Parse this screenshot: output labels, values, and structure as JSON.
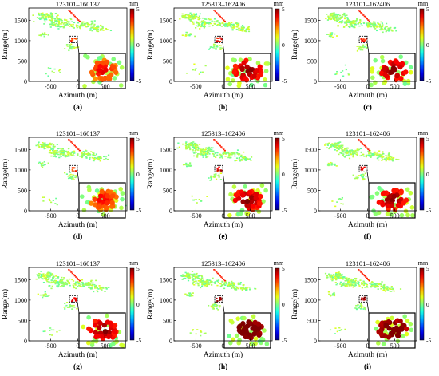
{
  "figure": {
    "panel_labels": [
      "(a)",
      "(b)",
      "(c)",
      "(d)",
      "(e)",
      "(f)",
      "(g)",
      "(h)",
      "(i)"
    ]
  },
  "chart_data": [
    {
      "type": "scatter",
      "title": "123101–160137",
      "xlabel": "Azimuth (m)",
      "ylabel": "Range(m)",
      "xlim": [
        -900,
        900
      ],
      "ylim": [
        0,
        1800
      ],
      "xticks": [
        -500,
        0,
        500
      ],
      "yticks": [
        0,
        500,
        1000,
        1500
      ],
      "colorbar": {
        "unit": "mm",
        "range": [
          -5,
          5
        ],
        "ticks": [
          5,
          0,
          -5
        ]
      },
      "inset": {
        "zoom_center": [
          -80,
          1030
        ],
        "dominant_color": "orange"
      }
    },
    {
      "type": "scatter",
      "title": "125313–162406",
      "xlabel": "Azimuth (m)",
      "ylabel": "Range(m)",
      "xlim": [
        -900,
        900
      ],
      "ylim": [
        0,
        1800
      ],
      "xticks": [
        -500,
        0,
        500
      ],
      "yticks": [
        0,
        500,
        1000,
        1500
      ],
      "colorbar": {
        "unit": "mm",
        "range": [
          -5,
          5
        ],
        "ticks": [
          5,
          0,
          -5
        ]
      },
      "inset": {
        "zoom_center": [
          -80,
          1030
        ],
        "dominant_color": "red"
      }
    },
    {
      "type": "scatter",
      "title": "123101–162406",
      "xlabel": "Azimuth (m)",
      "ylabel": "Range(m)",
      "xlim": [
        -900,
        900
      ],
      "ylim": [
        0,
        1800
      ],
      "xticks": [
        -500,
        0,
        500
      ],
      "yticks": [
        0,
        500,
        1000,
        1500
      ],
      "colorbar": {
        "unit": "mm",
        "range": [
          -5,
          5
        ],
        "ticks": [
          5,
          0,
          -5
        ]
      },
      "inset": {
        "zoom_center": [
          -80,
          1030
        ],
        "dominant_color": "red"
      }
    },
    {
      "type": "scatter",
      "title": "123101–160137",
      "xlabel": "Azimuth (m)",
      "ylabel": "Range(m)",
      "xlim": [
        -900,
        900
      ],
      "ylim": [
        0,
        1800
      ],
      "xticks": [
        -500,
        0,
        500
      ],
      "yticks": [
        0,
        500,
        1000,
        1500
      ],
      "colorbar": {
        "unit": "mm",
        "range": [
          -5,
          5
        ],
        "ticks": [
          5,
          0,
          -5
        ]
      },
      "inset": {
        "zoom_center": [
          -80,
          1030
        ],
        "dominant_color": "orange"
      }
    },
    {
      "type": "scatter",
      "title": "125313–162406",
      "xlabel": "Azimuth (m)",
      "ylabel": "Range(m)",
      "xlim": [
        -900,
        900
      ],
      "ylim": [
        0,
        1800
      ],
      "xticks": [
        -500,
        0,
        500
      ],
      "yticks": [
        0,
        500,
        1000,
        1500
      ],
      "colorbar": {
        "unit": "mm",
        "range": [
          -5,
          5
        ],
        "ticks": [
          5,
          0,
          -5
        ]
      },
      "inset": {
        "zoom_center": [
          -80,
          1030
        ],
        "dominant_color": "red"
      }
    },
    {
      "type": "scatter",
      "title": "123101–162406",
      "xlabel": "Azimuth (m)",
      "ylabel": "Range(m)",
      "xlim": [
        -900,
        900
      ],
      "ylim": [
        0,
        1800
      ],
      "xticks": [
        -500,
        0,
        500
      ],
      "yticks": [
        0,
        500,
        1000,
        1500
      ],
      "colorbar": {
        "unit": "mm",
        "range": [
          -5,
          5
        ],
        "ticks": [
          5,
          0,
          -5
        ]
      },
      "inset": {
        "zoom_center": [
          -80,
          1030
        ],
        "dominant_color": "red"
      }
    },
    {
      "type": "scatter",
      "title": "123101–160137",
      "xlabel": "Azimuth (m)",
      "ylabel": "Range(m)",
      "xlim": [
        -900,
        900
      ],
      "ylim": [
        0,
        1800
      ],
      "xticks": [
        -500,
        0,
        500
      ],
      "yticks": [
        0,
        500,
        1000,
        1500
      ],
      "colorbar": {
        "unit": "mm",
        "range": [
          -5,
          5
        ],
        "ticks": [
          5,
          0,
          -5
        ]
      },
      "inset": {
        "zoom_center": [
          -80,
          1030
        ],
        "dominant_color": "red"
      }
    },
    {
      "type": "scatter",
      "title": "125313–162406",
      "xlabel": "Azimuth (m)",
      "ylabel": "Range(m)",
      "xlim": [
        -900,
        900
      ],
      "ylim": [
        0,
        1800
      ],
      "xticks": [
        -500,
        0,
        500
      ],
      "yticks": [
        0,
        500,
        1000,
        1500
      ],
      "colorbar": {
        "unit": "mm",
        "range": [
          -5,
          5
        ],
        "ticks": [
          5,
          0,
          -5
        ]
      },
      "inset": {
        "zoom_center": [
          -80,
          1030
        ],
        "dominant_color": "darkred"
      }
    },
    {
      "type": "scatter",
      "title": "123101–162406",
      "xlabel": "Azimuth (m)",
      "ylabel": "Range(m)",
      "xlim": [
        -900,
        900
      ],
      "ylim": [
        0,
        1800
      ],
      "xticks": [
        -500,
        0,
        500
      ],
      "yticks": [
        0,
        500,
        1000,
        1500
      ],
      "colorbar": {
        "unit": "mm",
        "range": [
          -5,
          5
        ],
        "ticks": [
          5,
          0,
          -5
        ]
      },
      "inset": {
        "zoom_center": [
          -80,
          1030
        ],
        "dominant_color": "darkred"
      }
    }
  ]
}
